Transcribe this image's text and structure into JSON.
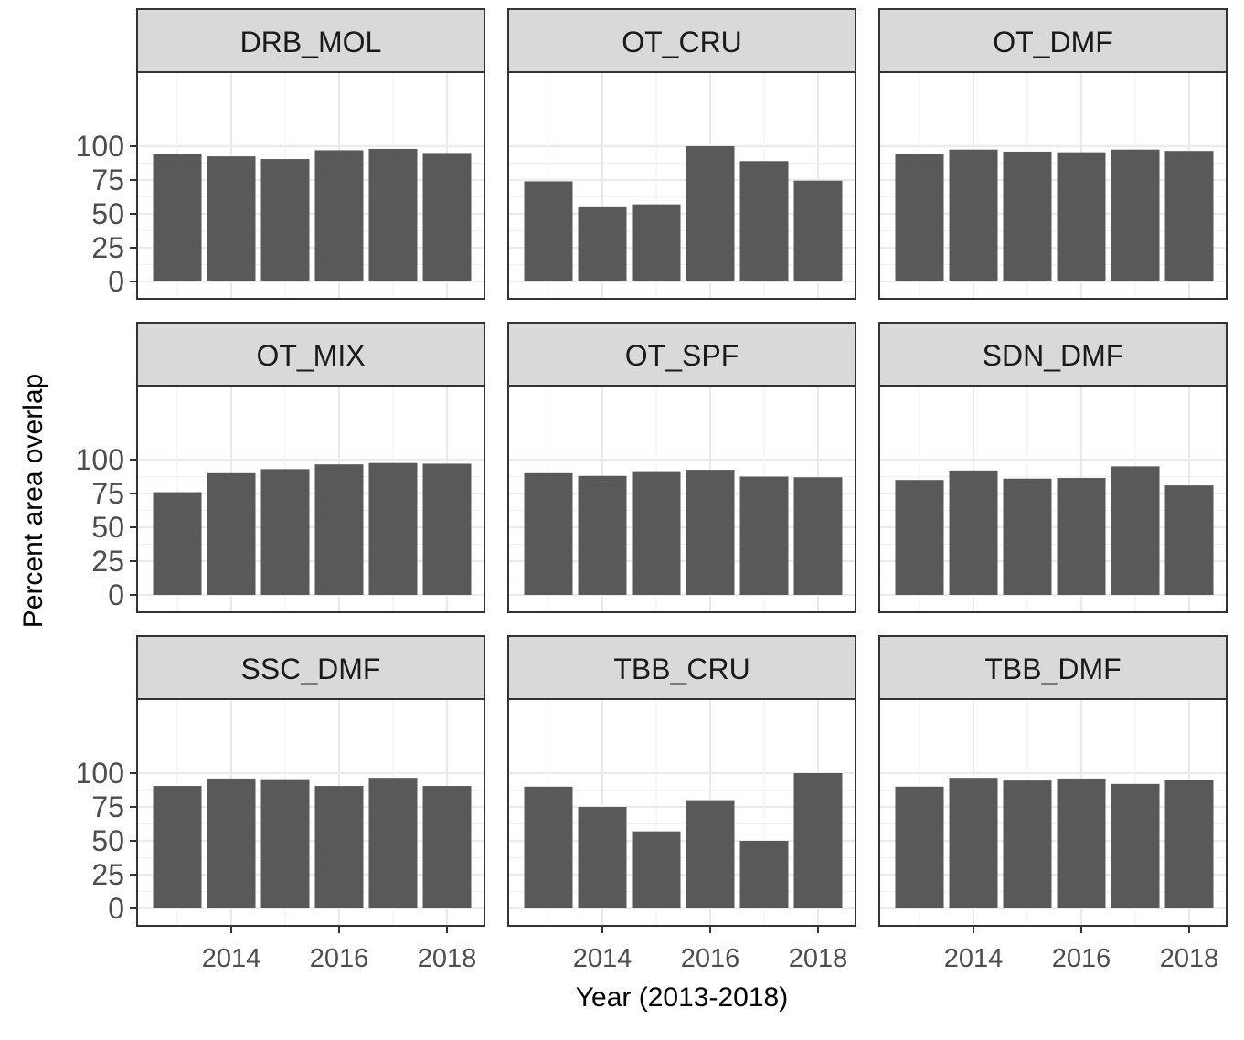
{
  "chart_data": {
    "type": "bar",
    "facets": true,
    "xlabel": "Year (2013-2018)",
    "ylabel": "Percent area overlap",
    "ylim": [
      0,
      100
    ],
    "yticks": [
      0,
      25,
      50,
      75,
      100
    ],
    "xticks": [
      2014,
      2016,
      2018
    ],
    "categories": [
      2013,
      2014,
      2015,
      2016,
      2017,
      2018
    ],
    "grid": true,
    "bar_color": "#595959",
    "strip_color": "#d9d9d9",
    "panels": [
      {
        "name": "DRB_MOL",
        "values": [
          94,
          92.5,
          90.5,
          97,
          98,
          95
        ]
      },
      {
        "name": "OT_CRU",
        "values": [
          74,
          55.5,
          57,
          100,
          89,
          74.5
        ]
      },
      {
        "name": "OT_DMF",
        "values": [
          94,
          97.5,
          96,
          95.5,
          97.5,
          96.5
        ]
      },
      {
        "name": "OT_MIX",
        "values": [
          76,
          90,
          93,
          96.5,
          97.5,
          97
        ]
      },
      {
        "name": "OT_SPF",
        "values": [
          90,
          88,
          91.5,
          92.5,
          87.5,
          87
        ]
      },
      {
        "name": "SDN_DMF",
        "values": [
          85,
          92,
          86,
          86.5,
          95,
          81
        ]
      },
      {
        "name": "SSC_DMF",
        "values": [
          90.5,
          96,
          95.5,
          90.5,
          96.5,
          90.5
        ]
      },
      {
        "name": "TBB_CRU",
        "values": [
          90,
          75,
          57,
          80,
          50,
          100
        ]
      },
      {
        "name": "TBB_DMF",
        "values": [
          90,
          96.5,
          94.5,
          96,
          92,
          95
        ]
      }
    ]
  }
}
